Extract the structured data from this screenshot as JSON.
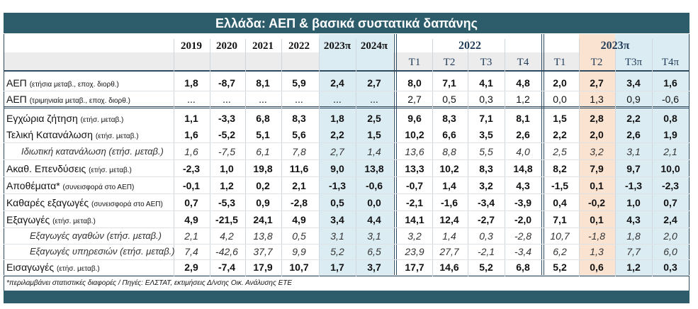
{
  "header": {
    "title": "Ελλάδα: ΑΕΠ & βασικά συστατικά δαπάνης",
    "years": [
      "2019",
      "2020",
      "2021",
      "2022",
      "2023π",
      "2024π"
    ],
    "groups": [
      {
        "label": "2022",
        "quarters": [
          "T1",
          "T2",
          "T3",
          "T4"
        ]
      },
      {
        "label": "2023π",
        "quarters": [
          "T1",
          "T2",
          "T3π",
          "T4π"
        ]
      }
    ]
  },
  "table": {
    "rows": [
      {
        "label": "ΑΕΠ",
        "note": "(ετήσια μεταβ., εποχ. διορθ.)",
        "values": [
          "1,8",
          "-8,7",
          "8,1",
          "5,9",
          "2,4",
          "2,7",
          "8,0",
          "7,1",
          "4,1",
          "4,8",
          "2,0",
          "2,7",
          "3,4",
          "1,6"
        ]
      },
      {
        "label": "ΑΕΠ",
        "note": "(τριμηνιαία μεταβ., εποχ. διορθ.)",
        "values": [
          "...",
          "...",
          "...",
          "...",
          "...",
          "...",
          "2,7",
          "0,5",
          "0,3",
          "1,2",
          "0,0",
          "1,3",
          "0,9",
          "-0,6"
        ]
      },
      {
        "label": "Εγχώρια ζήτηση",
        "note": "(ετήσ. μεταβ.)",
        "values": [
          "1,1",
          "-3,3",
          "6,8",
          "8,3",
          "1,8",
          "2,5",
          "9,6",
          "8,3",
          "7,1",
          "8,1",
          "1,5",
          "2,8",
          "2,2",
          "0,8"
        ]
      },
      {
        "label": "Τελική Κατανάλωση",
        "note": "(ετήσ. μεταβ.)",
        "values": [
          "1,6",
          "-5,2",
          "5,1",
          "5,6",
          "2,2",
          "1,5",
          "10,2",
          "6,6",
          "3,5",
          "2,6",
          "2,2",
          "2,0",
          "2,6",
          "1,9"
        ]
      },
      {
        "label": "Ιδιωτική κατανάλωση (ετήσ. μεταβ.)",
        "values": [
          "1,6",
          "-7,5",
          "6,1",
          "7,8",
          "2,7",
          "1,4",
          "13,6",
          "8,8",
          "5,5",
          "4,0",
          "2,5",
          "3,2",
          "3,1",
          "2,1"
        ]
      },
      {
        "label": "Ακαθ. Επενδύσεις",
        "note": "(ετήσ. μεταβ.)",
        "values": [
          "-2,3",
          "1,0",
          "19,8",
          "11,6",
          "9,0",
          "13,8",
          "13,3",
          "10,2",
          "8,3",
          "14,8",
          "8,2",
          "7,9",
          "9,7",
          "10,0"
        ]
      },
      {
        "label": "Αποθέματα*",
        "note": "(συνεισφορά στο ΑΕΠ)",
        "values": [
          "-0,1",
          "1,2",
          "0,2",
          "2,1",
          "-1,3",
          "-0,6",
          "-0,7",
          "1,4",
          "3,2",
          "4,3",
          "-1,5",
          "0,1",
          "-1,3",
          "-2,3"
        ]
      },
      {
        "label": "Καθαρές εξαγωγές",
        "note": "(συνεισφορά στο ΑΕΠ)",
        "values": [
          "0,7",
          "-5,3",
          "0,9",
          "-2,8",
          "0,5",
          "0,0",
          "-2,1",
          "-1,6",
          "-3,4",
          "-3,9",
          "0,4",
          "-0,2",
          "1,0",
          "0,7"
        ]
      },
      {
        "label": "Εξαγωγές",
        "note": "(ετήσ. μεταβ.)",
        "values": [
          "4,9",
          "-21,5",
          "24,1",
          "4,9",
          "3,4",
          "4,4",
          "14,1",
          "12,4",
          "-2,7",
          "-2,0",
          "7,1",
          "0,1",
          "4,3",
          "2,4"
        ]
      },
      {
        "label": "Εξαγωγές αγαθών (ετήσ. μεταβ.)",
        "values": [
          "2,1",
          "4,2",
          "13,8",
          "0,5",
          "3,1",
          "3,1",
          "3,2",
          "1,4",
          "0,3",
          "-2,8",
          "10,7",
          "-1,8",
          "1,8",
          "2,0"
        ]
      },
      {
        "label": "Εξαγωγές υπηρεσιών (ετήσ. μεταβ.)",
        "values": [
          "7,4",
          "-42,6",
          "37,7",
          "9,9",
          "5,2",
          "6,5",
          "23,9",
          "27,7",
          "-2,1",
          "-3,4",
          "6,2",
          "1,3",
          "7,7",
          "6,0"
        ]
      },
      {
        "label": "Εισαγωγές",
        "note": "(ετήσ. μεταβ.)",
        "values": [
          "2,9",
          "-7,4",
          "17,9",
          "10,7",
          "1,7",
          "3,7",
          "17,7",
          "14,6",
          "5,2",
          "6,8",
          "5,2",
          "0,6",
          "1,2",
          "0,3"
        ]
      }
    ]
  },
  "footnote": "*περιλαμβάνει στατιστικές διαφορές  / Πηγές: ΕΛΣΤΑΤ, εκτιμήσεις Δ/νσης Οικ. Ανάλυσης ΕΤΕ"
}
